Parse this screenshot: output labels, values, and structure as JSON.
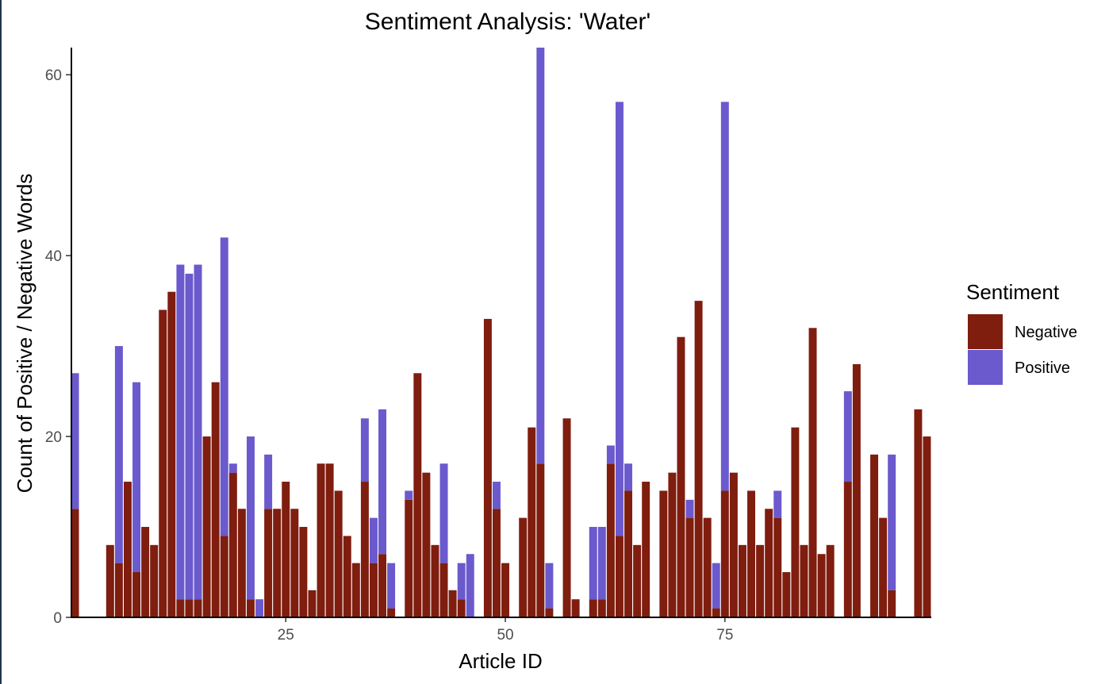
{
  "chart_data": {
    "type": "bar",
    "stacked": true,
    "title": "Sentiment Analysis: 'Water'",
    "xlabel": "Article ID",
    "ylabel": "Count of Positive / Negative Words",
    "xlim": [
      0.5,
      98.5
    ],
    "ylim": [
      0,
      63
    ],
    "x_ticks": [
      25,
      50,
      75
    ],
    "y_ticks": [
      0,
      20,
      40,
      60
    ],
    "grid": false,
    "legend": {
      "title": "Sentiment",
      "position": "right",
      "entries": [
        {
          "name": "Negative",
          "color": "#7f1d0f"
        },
        {
          "name": "Positive",
          "color": "#6a5acd"
        }
      ]
    },
    "x": [
      1,
      2,
      3,
      4,
      5,
      6,
      7,
      8,
      9,
      10,
      11,
      12,
      13,
      14,
      15,
      16,
      17,
      18,
      19,
      20,
      21,
      22,
      23,
      24,
      25,
      26,
      27,
      28,
      29,
      30,
      31,
      32,
      33,
      34,
      35,
      36,
      37,
      38,
      39,
      40,
      41,
      42,
      43,
      44,
      45,
      46,
      47,
      48,
      49,
      50,
      51,
      52,
      53,
      54,
      55,
      56,
      57,
      58,
      59,
      60,
      61,
      62,
      63,
      64,
      65,
      66,
      67,
      68,
      69,
      70,
      71,
      72,
      73,
      74,
      75,
      76,
      77,
      78,
      79,
      80,
      81,
      82,
      83,
      84,
      85,
      86,
      87,
      88,
      89,
      90,
      91,
      92,
      93,
      94,
      95,
      96,
      97,
      98
    ],
    "series": [
      {
        "name": "Negative",
        "color": "#7f1d0f",
        "values": [
          12,
          0,
          0,
          0,
          8,
          6,
          15,
          5,
          10,
          8,
          34,
          36,
          2,
          2,
          2,
          20,
          26,
          9,
          16,
          12,
          2,
          0,
          12,
          12,
          15,
          12,
          10,
          3,
          17,
          17,
          14,
          9,
          6,
          15,
          6,
          7,
          1,
          0,
          13,
          27,
          16,
          8,
          6,
          3,
          2,
          0,
          0,
          33,
          12,
          6,
          0,
          11,
          21,
          17,
          1,
          0,
          22,
          2,
          0,
          2,
          2,
          17,
          9,
          14,
          8,
          15,
          0,
          14,
          16,
          31,
          11,
          35,
          11,
          1,
          14,
          16,
          8,
          14,
          8,
          12,
          11,
          5,
          21,
          8,
          32,
          7,
          8,
          0,
          15,
          28,
          0,
          18,
          11,
          3,
          0,
          0,
          23,
          20
        ]
      },
      {
        "name": "Positive",
        "color": "#6a5acd",
        "values": [
          15,
          0,
          0,
          0,
          0,
          24,
          0,
          21,
          0,
          0,
          0,
          0,
          37,
          36,
          37,
          0,
          0,
          33,
          1,
          0,
          18,
          2,
          6,
          0,
          0,
          0,
          0,
          0,
          0,
          0,
          0,
          0,
          0,
          7,
          5,
          16,
          5,
          0,
          1,
          0,
          0,
          0,
          11,
          0,
          4,
          7,
          0,
          0,
          3,
          0,
          0,
          0,
          0,
          46,
          5,
          0,
          0,
          0,
          0,
          8,
          8,
          2,
          48,
          3,
          0,
          0,
          0,
          0,
          0,
          0,
          2,
          0,
          0,
          5,
          43,
          0,
          0,
          0,
          0,
          0,
          3,
          0,
          0,
          0,
          0,
          0,
          0,
          0,
          10,
          0,
          0,
          0,
          0,
          15,
          0,
          0,
          0,
          0
        ]
      }
    ]
  }
}
